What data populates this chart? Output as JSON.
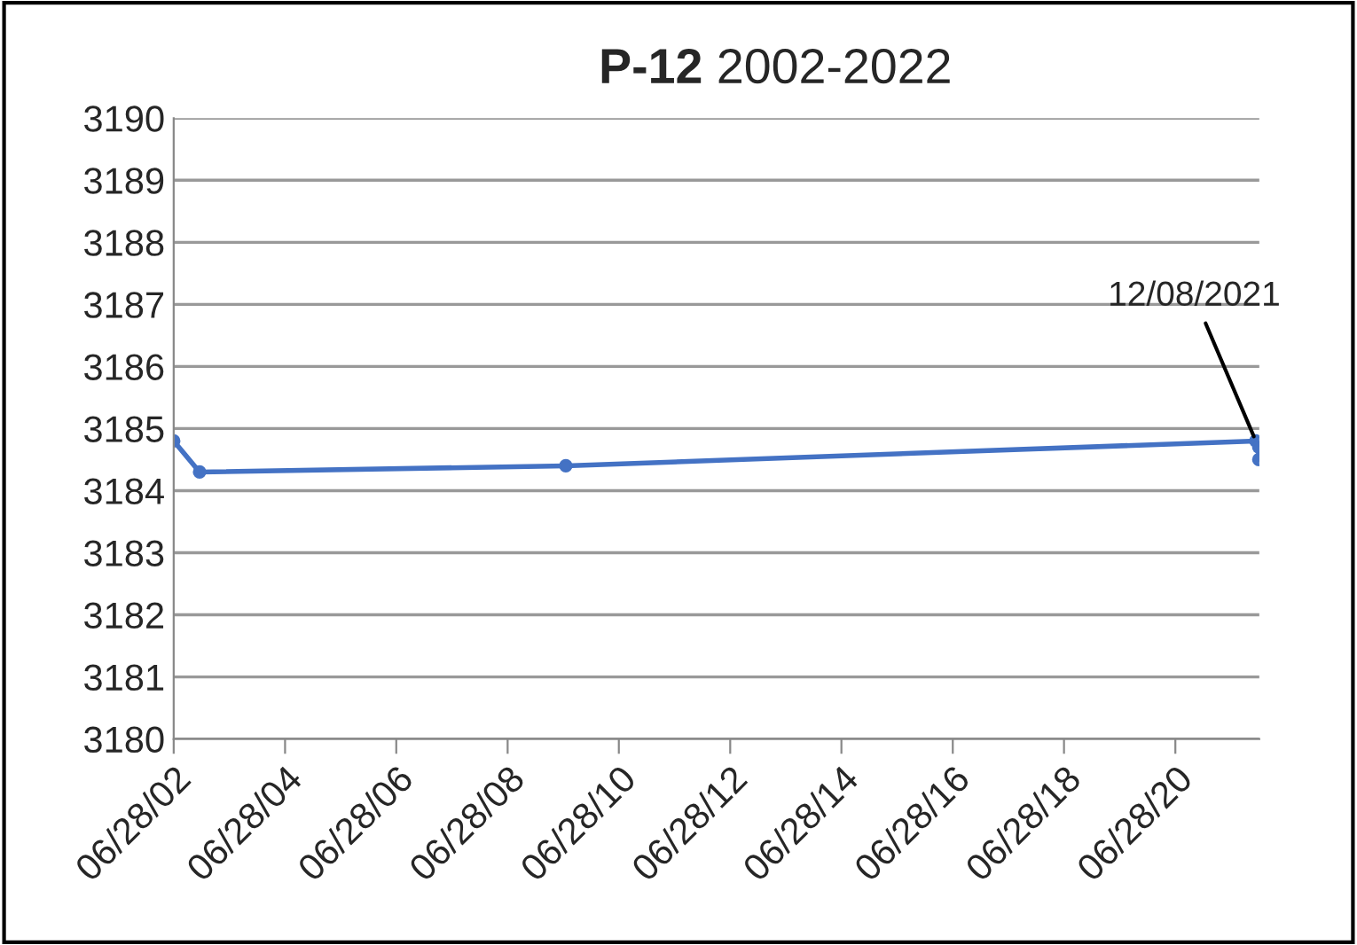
{
  "chart_data": {
    "type": "line",
    "title": "P-12 2002-2022",
    "x": [
      "2002-06-28",
      "2002-12-15",
      "2009-07-15",
      "2021-12-08",
      "2021-12-28",
      "2021-12-28"
    ],
    "series": [
      {
        "color": "#4472c4",
        "values": [
          3184.8,
          3184.3,
          3184.4,
          3184.8,
          3184.7,
          3184.5
        ]
      }
    ],
    "xlim": [
      "2002-06-28",
      "2021-12-31"
    ],
    "xticks": [
      {
        "value": "2002-06-28",
        "label": "06/28/02"
      },
      {
        "value": "2004-06-28",
        "label": "06/28/04"
      },
      {
        "value": "2006-06-28",
        "label": "06/28/06"
      },
      {
        "value": "2008-06-28",
        "label": "06/28/08"
      },
      {
        "value": "2010-06-28",
        "label": "06/28/10"
      },
      {
        "value": "2012-06-28",
        "label": "06/28/12"
      },
      {
        "value": "2014-06-28",
        "label": "06/28/14"
      },
      {
        "value": "2016-06-28",
        "label": "06/28/16"
      },
      {
        "value": "2018-06-28",
        "label": "06/28/18"
      },
      {
        "value": "2020-06-28",
        "label": "06/28/20"
      }
    ],
    "ylim": [
      3180,
      3190
    ],
    "yticks": [
      3180,
      3181,
      3182,
      3183,
      3184,
      3185,
      3186,
      3187,
      3188,
      3189,
      3190
    ],
    "grid": "y",
    "marker": "circle",
    "line_style": "solid",
    "annotations": [
      {
        "text": "12/08/2021",
        "x": "2021-12-08",
        "y": 3184.8
      }
    ]
  }
}
